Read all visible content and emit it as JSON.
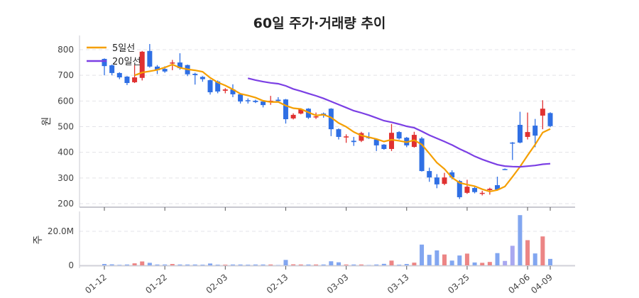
{
  "chart_data": {
    "type": "candlestick",
    "title": "60일 주가·거래량 추이",
    "price_ylabel": "원",
    "volume_ylabel": "주",
    "price_ylim": [
      185,
      855
    ],
    "price_yticks": [
      200,
      300,
      400,
      500,
      600,
      700,
      800
    ],
    "volume_ylim": [
      0,
      31
    ],
    "volume_yticks": [
      {
        "v": 0,
        "label": "0"
      },
      {
        "v": 20,
        "label": "20.0M"
      }
    ],
    "grid": true,
    "legend": {
      "placement": "top-left",
      "entries": [
        {
          "label": "5일선",
          "color": "#f59f00",
          "period": 5
        },
        {
          "label": "20일선",
          "color": "#7b3fe4",
          "period": 20
        }
      ]
    },
    "colors": {
      "up": "#e03131",
      "down": "#2f6fe4",
      "vol_up": "#ec8585",
      "vol_down": "#82a6f0",
      "vol_other": "#a9a8f0"
    },
    "x_ticks": [
      {
        "i": 0,
        "label": "01-12"
      },
      {
        "i": 8,
        "label": "01-22"
      },
      {
        "i": 16,
        "label": "02-03"
      },
      {
        "i": 24,
        "label": "02-13"
      },
      {
        "i": 32,
        "label": "03-03"
      },
      {
        "i": 40,
        "label": "03-13"
      },
      {
        "i": 48,
        "label": "03-25"
      },
      {
        "i": 56,
        "label": "04-06"
      },
      {
        "i": 59,
        "label": "04-09"
      }
    ],
    "ohlc": [
      [
        764,
        766,
        700,
        736
      ],
      [
        739,
        742,
        700,
        709
      ],
      [
        709,
        712,
        685,
        692
      ],
      [
        695,
        697,
        662,
        670
      ],
      [
        673,
        740,
        670,
        692
      ],
      [
        690,
        795,
        680,
        792
      ],
      [
        795,
        822,
        730,
        734
      ],
      [
        734,
        740,
        705,
        720
      ],
      [
        725,
        735,
        710,
        715
      ],
      [
        747,
        760,
        720,
        750
      ],
      [
        750,
        786,
        722,
        728
      ],
      [
        740,
        742,
        697,
        704
      ],
      [
        706,
        710,
        664,
        701
      ],
      [
        694,
        697,
        675,
        685
      ],
      [
        681,
        684,
        625,
        634
      ],
      [
        676,
        680,
        630,
        637
      ],
      [
        640,
        650,
        630,
        645
      ],
      [
        645,
        665,
        615,
        626
      ],
      [
        626,
        628,
        590,
        598
      ],
      [
        603,
        610,
        590,
        601
      ],
      [
        601,
        605,
        592,
        596
      ],
      [
        598,
        600,
        575,
        584
      ],
      [
        597,
        620,
        585,
        601
      ],
      [
        605,
        615,
        598,
        600
      ],
      [
        606,
        608,
        512,
        529
      ],
      [
        532,
        552,
        528,
        546
      ],
      [
        551,
        572,
        548,
        568
      ],
      [
        570,
        572,
        530,
        535
      ],
      [
        538,
        555,
        530,
        540
      ],
      [
        551,
        555,
        535,
        545
      ],
      [
        570,
        572,
        463,
        490
      ],
      [
        490,
        493,
        450,
        460
      ],
      [
        458,
        470,
        437,
        462
      ],
      [
        445,
        460,
        425,
        440
      ],
      [
        445,
        480,
        440,
        475
      ],
      [
        460,
        478,
        452,
        455
      ],
      [
        450,
        454,
        405,
        427
      ],
      [
        430,
        432,
        410,
        413
      ],
      [
        413,
        510,
        405,
        476
      ],
      [
        479,
        482,
        450,
        454
      ],
      [
        457,
        460,
        420,
        427
      ],
      [
        421,
        480,
        418,
        468
      ],
      [
        454,
        460,
        325,
        327
      ],
      [
        327,
        340,
        285,
        302
      ],
      [
        302,
        315,
        260,
        275
      ],
      [
        277,
        320,
        272,
        302
      ],
      [
        322,
        330,
        295,
        302
      ],
      [
        288,
        292,
        218,
        225
      ],
      [
        242,
        293,
        238,
        266
      ],
      [
        261,
        265,
        240,
        245
      ],
      [
        239,
        250,
        232,
        242
      ],
      [
        253,
        262,
        235,
        258
      ],
      [
        272,
        305,
        252,
        255
      ],
      [
        335,
        337,
        331,
        333
      ],
      [
        438,
        440,
        370,
        435
      ],
      [
        507,
        558,
        435,
        438
      ],
      [
        460,
        555,
        450,
        479
      ],
      [
        504,
        530,
        420,
        465
      ],
      [
        543,
        603,
        490,
        570
      ],
      [
        553,
        556,
        498,
        502
      ]
    ],
    "volume_millions": [
      0.8,
      0.6,
      0.3,
      0.5,
      1.2,
      2.3,
      1.5,
      0.5,
      0.5,
      0.8,
      0.5,
      0.5,
      0.5,
      0.4,
      1.1,
      0.4,
      0.4,
      0.5,
      0.5,
      0.4,
      0.5,
      0.5,
      0.5,
      0.2,
      3.2,
      0.6,
      0.5,
      0.5,
      0.5,
      0.5,
      2.4,
      1.8,
      0.5,
      0.5,
      0.5,
      0.2,
      0.5,
      0.9,
      2.8,
      0.4,
      0.8,
      1.6,
      12.2,
      6.2,
      8.8,
      6.4,
      2.8,
      5.8,
      6.9,
      1.7,
      1.5,
      2.0,
      7.2,
      2.6,
      11.5,
      29.5,
      14.8,
      7.0,
      17.0,
      3.8
    ],
    "volume_other_idx": [
      53,
      54
    ]
  }
}
